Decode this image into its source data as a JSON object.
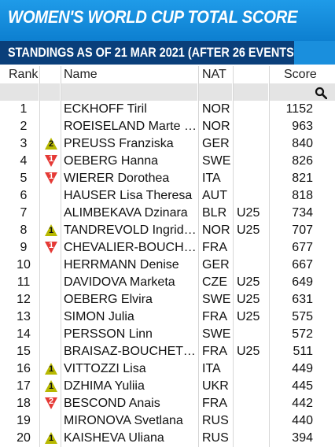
{
  "header": {
    "title": "WOMEN'S WORLD CUP TOTAL SCORE"
  },
  "standings": {
    "subtitle": "STANDINGS AS OF 21 MAR 2021 (AFTER 26 EVENTS)"
  },
  "columns": {
    "rank": "Rank",
    "name": "Name",
    "nat": "NAT",
    "score": "Score"
  },
  "colors": {
    "header_blue": "#1a8fdd",
    "subheader_navy": "#0a3f7a",
    "up_badge": "#b7b800",
    "down_badge": "#e53935"
  },
  "icons": {
    "search": "search-icon",
    "up": "triangle-up-icon",
    "down": "triangle-down-icon"
  },
  "rows": [
    {
      "rank": "1",
      "name": "ECKHOFF Tiril",
      "nat": "NOR",
      "age": "",
      "score": "1152",
      "trend": "",
      "change": ""
    },
    {
      "rank": "2",
      "name": "ROEISELAND Marte Ol...",
      "nat": "NOR",
      "age": "",
      "score": "963",
      "trend": "",
      "change": ""
    },
    {
      "rank": "3",
      "name": "PREUSS Franziska",
      "nat": "GER",
      "age": "",
      "score": "840",
      "trend": "up",
      "change": "2"
    },
    {
      "rank": "4",
      "name": "OEBERG Hanna",
      "nat": "SWE",
      "age": "",
      "score": "826",
      "trend": "down",
      "change": "1"
    },
    {
      "rank": "5",
      "name": "WIERER Dorothea",
      "nat": "ITA",
      "age": "",
      "score": "821",
      "trend": "down",
      "change": "1"
    },
    {
      "rank": "6",
      "name": "HAUSER Lisa Theresa",
      "nat": "AUT",
      "age": "",
      "score": "818",
      "trend": "",
      "change": ""
    },
    {
      "rank": "7",
      "name": "ALIMBEKAVA Dzinara",
      "nat": "BLR",
      "age": "U25",
      "score": "734",
      "trend": "",
      "change": ""
    },
    {
      "rank": "8",
      "name": "TANDREVOLD Ingrid L...",
      "nat": "NOR",
      "age": "U25",
      "score": "707",
      "trend": "up",
      "change": "1"
    },
    {
      "rank": "9",
      "name": "CHEVALIER-BOUCHET ...",
      "nat": "FRA",
      "age": "",
      "score": "677",
      "trend": "down",
      "change": "1"
    },
    {
      "rank": "10",
      "name": "HERRMANN Denise",
      "nat": "GER",
      "age": "",
      "score": "667",
      "trend": "",
      "change": ""
    },
    {
      "rank": "11",
      "name": "DAVIDOVA Marketa",
      "nat": "CZE",
      "age": "U25",
      "score": "649",
      "trend": "",
      "change": ""
    },
    {
      "rank": "12",
      "name": "OEBERG Elvira",
      "nat": "SWE",
      "age": "U25",
      "score": "631",
      "trend": "",
      "change": ""
    },
    {
      "rank": "13",
      "name": "SIMON Julia",
      "nat": "FRA",
      "age": "U25",
      "score": "575",
      "trend": "",
      "change": ""
    },
    {
      "rank": "14",
      "name": "PERSSON Linn",
      "nat": "SWE",
      "age": "",
      "score": "572",
      "trend": "",
      "change": ""
    },
    {
      "rank": "15",
      "name": "BRAISAZ-BOUCHET Ju...",
      "nat": "FRA",
      "age": "U25",
      "score": "511",
      "trend": "",
      "change": ""
    },
    {
      "rank": "16",
      "name": "VITTOZZI Lisa",
      "nat": "ITA",
      "age": "",
      "score": "449",
      "trend": "up",
      "change": "1"
    },
    {
      "rank": "17",
      "name": "DZHIMA Yuliia",
      "nat": "UKR",
      "age": "",
      "score": "445",
      "trend": "up",
      "change": "1"
    },
    {
      "rank": "18",
      "name": "BESCOND Anais",
      "nat": "FRA",
      "age": "",
      "score": "442",
      "trend": "down",
      "change": "2"
    },
    {
      "rank": "19",
      "name": "MIRONOVA Svetlana",
      "nat": "RUS",
      "age": "",
      "score": "440",
      "trend": "",
      "change": ""
    },
    {
      "rank": "20",
      "name": "KAISHEVA Uliana",
      "nat": "RUS",
      "age": "",
      "score": "394",
      "trend": "up",
      "change": "1"
    }
  ]
}
